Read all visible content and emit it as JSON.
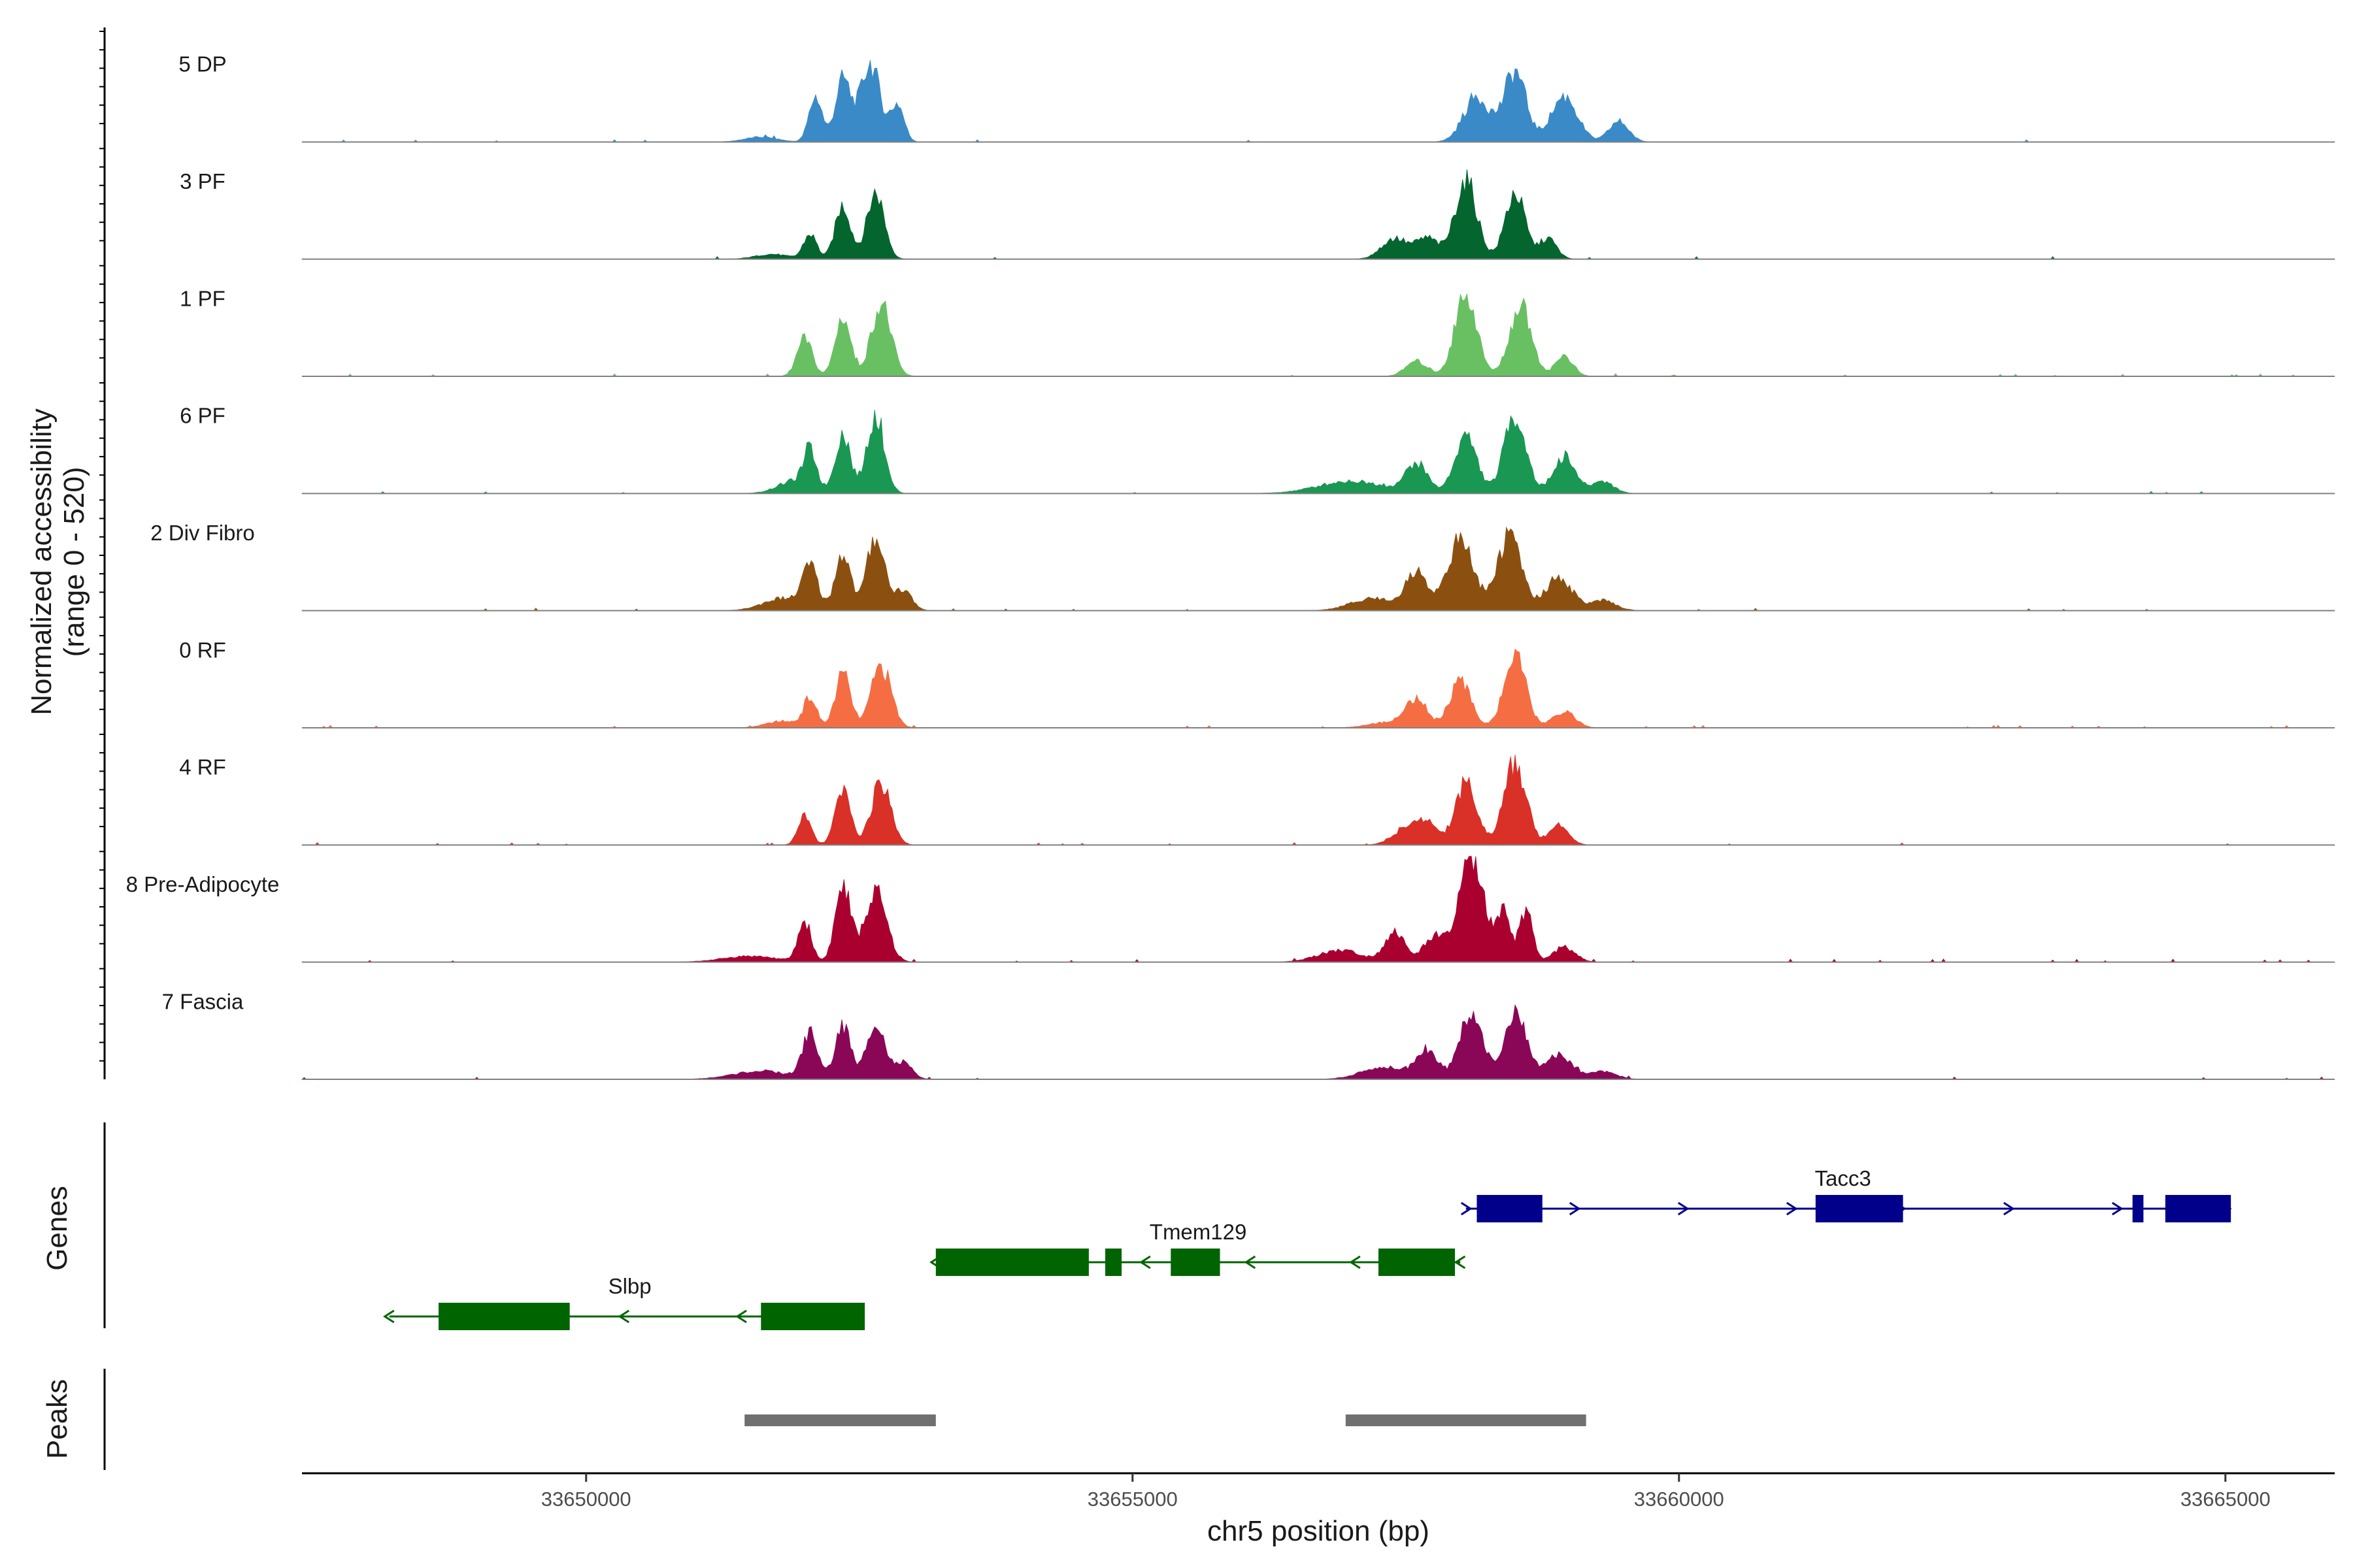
{
  "chart_data": {
    "type": "area",
    "chromosome": "chr5",
    "xlabel": "chr5 position (bp)",
    "ylabel": "Normalized accessibility",
    "ylabel_range": "(range 0 - 520)",
    "xlim": [
      33647400,
      33666000
    ],
    "ylim": [
      0,
      520
    ],
    "x_ticks": [
      33650000,
      33655000,
      33660000,
      33665000
    ],
    "x_tick_labels": [
      "33650000",
      "33655000",
      "33660000",
      "33665000"
    ],
    "tracks": [
      {
        "name": "5 DP",
        "color": "#3a8ac7",
        "scale": 0.82,
        "peaks": [
          [
            33652100,
            60,
            0.55
          ],
          [
            33652350,
            70,
            0.75
          ],
          [
            33652600,
            90,
            0.95
          ],
          [
            33652850,
            60,
            0.45
          ],
          [
            33658150,
            120,
            0.55
          ],
          [
            33658500,
            100,
            0.85
          ],
          [
            33658950,
            120,
            0.55
          ],
          [
            33659450,
            90,
            0.25
          ],
          [
            33651600,
            150,
            0.06
          ]
        ]
      },
      {
        "name": "3 PF",
        "color": "#05652f",
        "scale": 0.82,
        "peaks": [
          [
            33652050,
            60,
            0.3
          ],
          [
            33652350,
            70,
            0.65
          ],
          [
            33652650,
            80,
            0.8
          ],
          [
            33651700,
            150,
            0.06
          ],
          [
            33657400,
            120,
            0.25
          ],
          [
            33657700,
            100,
            0.25
          ],
          [
            33658050,
            100,
            0.95
          ],
          [
            33658500,
            90,
            0.8
          ],
          [
            33658800,
            80,
            0.25
          ]
        ]
      },
      {
        "name": "1 PF",
        "color": "#69c063",
        "scale": 0.82,
        "peaks": [
          [
            33652000,
            70,
            0.45
          ],
          [
            33652350,
            70,
            0.72
          ],
          [
            33652700,
            90,
            0.88
          ],
          [
            33657600,
            100,
            0.18
          ],
          [
            33658050,
            100,
            1.0
          ],
          [
            33658550,
            100,
            0.85
          ],
          [
            33658950,
            80,
            0.25
          ]
        ]
      },
      {
        "name": "6 PF",
        "color": "#1a9752",
        "scale": 0.82,
        "peaks": [
          [
            33651900,
            150,
            0.15
          ],
          [
            33652050,
            60,
            0.45
          ],
          [
            33652350,
            70,
            0.72
          ],
          [
            33652650,
            80,
            0.95
          ],
          [
            33657000,
            300,
            0.15
          ],
          [
            33657600,
            100,
            0.35
          ],
          [
            33658050,
            100,
            0.7
          ],
          [
            33658500,
            100,
            0.95
          ],
          [
            33658950,
            100,
            0.45
          ],
          [
            33659300,
            100,
            0.15
          ]
        ]
      },
      {
        "name": "2 Div Fibro",
        "color": "#8b5010",
        "scale": 0.82,
        "peaks": [
          [
            33651800,
            180,
            0.15
          ],
          [
            33652050,
            70,
            0.5
          ],
          [
            33652350,
            70,
            0.7
          ],
          [
            33652650,
            80,
            0.9
          ],
          [
            33652900,
            80,
            0.25
          ],
          [
            33657200,
            200,
            0.15
          ],
          [
            33657600,
            100,
            0.45
          ],
          [
            33658000,
            120,
            0.85
          ],
          [
            33658450,
            110,
            0.9
          ],
          [
            33658900,
            120,
            0.4
          ],
          [
            33659300,
            120,
            0.12
          ]
        ]
      },
      {
        "name": "0 RF",
        "color": "#f56e43",
        "scale": 0.82,
        "peaks": [
          [
            33651800,
            150,
            0.08
          ],
          [
            33652050,
            60,
            0.35
          ],
          [
            33652350,
            70,
            0.65
          ],
          [
            33652700,
            90,
            0.75
          ],
          [
            33657400,
            200,
            0.08
          ],
          [
            33657600,
            90,
            0.32
          ],
          [
            33658000,
            100,
            0.55
          ],
          [
            33658500,
            100,
            0.85
          ],
          [
            33658950,
            100,
            0.2
          ]
        ]
      },
      {
        "name": "4 RF",
        "color": "#d93028",
        "scale": 0.82,
        "peaks": [
          [
            33652000,
            60,
            0.35
          ],
          [
            33652350,
            70,
            0.65
          ],
          [
            33652700,
            90,
            0.75
          ],
          [
            33657500,
            120,
            0.2
          ],
          [
            33657700,
            90,
            0.25
          ],
          [
            33658050,
            100,
            0.75
          ],
          [
            33658500,
            100,
            1.0
          ],
          [
            33658900,
            90,
            0.25
          ]
        ]
      },
      {
        "name": "8 Pre-Adipocyte",
        "color": "#aa0030",
        "scale": 1.0,
        "peaks": [
          [
            33651500,
            250,
            0.06
          ],
          [
            33652000,
            60,
            0.4
          ],
          [
            33652350,
            70,
            0.75
          ],
          [
            33652650,
            100,
            0.68
          ],
          [
            33656900,
            200,
            0.12
          ],
          [
            33657400,
            90,
            0.3
          ],
          [
            33657750,
            90,
            0.25
          ],
          [
            33658100,
            120,
            1.0
          ],
          [
            33658400,
            60,
            0.45
          ],
          [
            33658600,
            60,
            0.5
          ],
          [
            33658950,
            100,
            0.15
          ]
        ]
      },
      {
        "name": "7 Fascia",
        "color": "#8a0758",
        "scale": 0.82,
        "peaks": [
          [
            33651600,
            250,
            0.1
          ],
          [
            33652050,
            70,
            0.55
          ],
          [
            33652350,
            70,
            0.65
          ],
          [
            33652650,
            80,
            0.72
          ],
          [
            33652900,
            80,
            0.2
          ],
          [
            33657300,
            200,
            0.15
          ],
          [
            33657700,
            100,
            0.35
          ],
          [
            33658100,
            100,
            0.85
          ],
          [
            33658500,
            100,
            0.8
          ],
          [
            33658900,
            120,
            0.3
          ],
          [
            33659300,
            120,
            0.1
          ]
        ]
      }
    ],
    "genes_panel_title": "Genes",
    "peaks_panel_title": "Peaks",
    "genes": [
      {
        "name": "Slbp",
        "strand": "-",
        "color": "#006400",
        "start": 33648200,
        "end": 33652500,
        "exons": [
          [
            33648650,
            33649850
          ],
          [
            33651600,
            33652550
          ]
        ]
      },
      {
        "name": "Tmem129",
        "strand": "-",
        "color": "#006400",
        "start": 33653200,
        "end": 33658000,
        "exons": [
          [
            33653200,
            33654600
          ],
          [
            33654750,
            33654900
          ],
          [
            33655350,
            33655800
          ],
          [
            33657250,
            33657950
          ]
        ]
      },
      {
        "name": "Tacc3",
        "strand": "+",
        "color": "#00008b",
        "start": 33658050,
        "end": 33665000,
        "exons": [
          [
            33658150,
            33658750
          ],
          [
            33661250,
            33662050
          ],
          [
            33664150,
            33664250
          ],
          [
            33664450,
            33665050
          ]
        ]
      }
    ],
    "peaks": [
      [
        33651450,
        33653200
      ],
      [
        33656950,
        33659150
      ]
    ]
  }
}
